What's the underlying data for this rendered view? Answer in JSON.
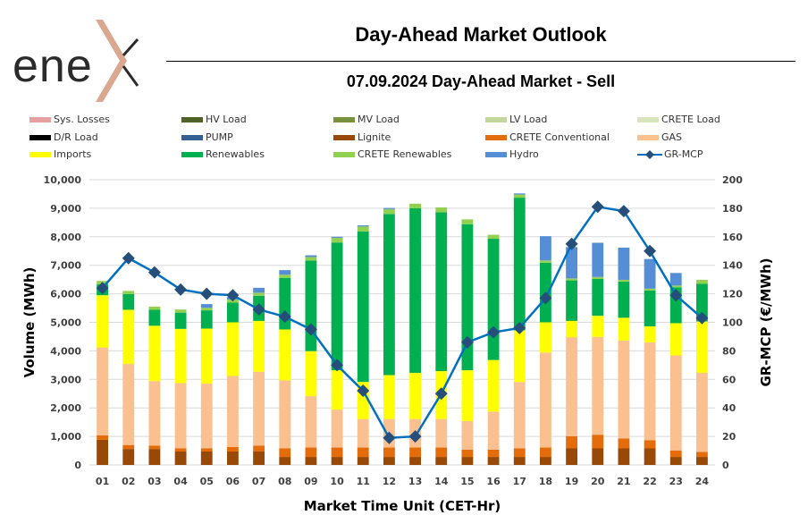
{
  "header": {
    "logo_text": "ene",
    "title": "Day-Ahead Market Outlook",
    "subtitle": "07.09.2024  Day-Ahead Market - Sell"
  },
  "legend": [
    {
      "label": "Sys. Losses",
      "color": "#E6A0A0",
      "kind": "bar"
    },
    {
      "label": "HV Load",
      "color": "#4F6228",
      "kind": "bar"
    },
    {
      "label": "MV Load",
      "color": "#76923C",
      "kind": "bar"
    },
    {
      "label": "LV Load",
      "color": "#C3D69B",
      "kind": "bar"
    },
    {
      "label": "CRETE Load",
      "color": "#D8E4BC",
      "kind": "bar"
    },
    {
      "label": "D/R Load",
      "color": "#000000",
      "kind": "bar"
    },
    {
      "label": "PUMP",
      "color": "#376092",
      "kind": "bar"
    },
    {
      "label": "Lignite",
      "color": "#984807",
      "kind": "bar"
    },
    {
      "label": "CRETE Conventional",
      "color": "#E46C0A",
      "kind": "bar"
    },
    {
      "label": "GAS",
      "color": "#FAC090",
      "kind": "bar"
    },
    {
      "label": "Imports",
      "color": "#FFFF00",
      "kind": "bar"
    },
    {
      "label": "Renewables",
      "color": "#00B050",
      "kind": "bar"
    },
    {
      "label": "CRETE Renewables",
      "color": "#92D050",
      "kind": "bar"
    },
    {
      "label": "Hydro",
      "color": "#558ED5",
      "kind": "bar"
    },
    {
      "label": "GR-MCP",
      "color": "#0070C0",
      "marker": "#254F7A",
      "kind": "line"
    }
  ],
  "chart_data": {
    "type": "bar",
    "title": "Day-Ahead Market Outlook",
    "subtitle": "07.09.2024  Day-Ahead Market - Sell",
    "xlabel": "Market Time Unit (CET-Hr)",
    "ylabel": "Volume (MWh)",
    "y2label": "GR-MCP (€/MWh)",
    "ylim": [
      0,
      10000
    ],
    "y2lim": [
      0,
      200
    ],
    "yticks": [
      "0",
      "1,000",
      "2,000",
      "3,000",
      "4,000",
      "5,000",
      "6,000",
      "7,000",
      "8,000",
      "9,000",
      "10,000"
    ],
    "y2ticks": [
      "0",
      "20",
      "40",
      "60",
      "80",
      "100",
      "120",
      "140",
      "160",
      "180",
      "200"
    ],
    "grid": true,
    "legend_position": "top",
    "categories": [
      "01",
      "02",
      "03",
      "04",
      "05",
      "06",
      "07",
      "08",
      "09",
      "10",
      "11",
      "12",
      "13",
      "14",
      "15",
      "16",
      "17",
      "18",
      "19",
      "20",
      "21",
      "22",
      "23",
      "24"
    ],
    "stacked": true,
    "series": [
      {
        "name": "Lignite",
        "color": "#984807",
        "values": [
          880,
          560,
          560,
          470,
          470,
          470,
          470,
          280,
          280,
          280,
          280,
          280,
          280,
          280,
          280,
          280,
          280,
          280,
          580,
          580,
          580,
          580,
          280,
          280
        ]
      },
      {
        "name": "CRETE Conventional",
        "color": "#E46C0A",
        "values": [
          160,
          140,
          120,
          110,
          110,
          160,
          210,
          300,
          330,
          330,
          330,
          330,
          330,
          330,
          260,
          260,
          300,
          330,
          430,
          480,
          350,
          290,
          230,
          180
        ]
      },
      {
        "name": "GAS",
        "color": "#FAC090",
        "values": [
          3080,
          2840,
          2260,
          2290,
          2270,
          2490,
          2590,
          2390,
          1800,
          1330,
          1000,
          1000,
          1000,
          1000,
          1000,
          1330,
          2330,
          3330,
          3470,
          3430,
          3430,
          3430,
          3330,
          2770
        ]
      },
      {
        "name": "Imports",
        "color": "#FFFF00",
        "values": [
          1830,
          1900,
          1940,
          1900,
          1930,
          1880,
          1780,
          1780,
          1580,
          1380,
          1300,
          1540,
          1620,
          1680,
          1780,
          1810,
          1810,
          1060,
          570,
          740,
          800,
          560,
          1130,
          1800
        ]
      },
      {
        "name": "Renewables",
        "color": "#00B050",
        "values": [
          380,
          550,
          560,
          570,
          640,
          690,
          880,
          1810,
          3180,
          4480,
          5280,
          5650,
          5770,
          5570,
          5120,
          4250,
          4650,
          2090,
          1420,
          1290,
          1270,
          1260,
          1260,
          1320
        ]
      },
      {
        "name": "CRETE Renewables",
        "color": "#92D050",
        "values": [
          120,
          110,
          110,
          110,
          90,
          110,
          110,
          110,
          120,
          160,
          170,
          170,
          160,
          170,
          170,
          140,
          110,
          80,
          70,
          70,
          60,
          60,
          60,
          140
        ]
      },
      {
        "name": "Hydro",
        "color": "#558ED5",
        "values": [
          0,
          0,
          0,
          0,
          130,
          90,
          170,
          160,
          60,
          40,
          40,
          40,
          0,
          0,
          0,
          0,
          40,
          850,
          1100,
          1200,
          1130,
          1040,
          440,
          0
        ]
      }
    ],
    "line_series": {
      "name": "GR-MCP",
      "axis": "right",
      "color": "#0070C0",
      "marker_color": "#254F7A",
      "values": [
        124,
        145,
        135,
        123,
        120,
        119,
        109,
        104,
        95,
        70,
        52,
        19,
        20,
        50,
        86,
        93,
        96,
        117,
        155,
        181,
        178,
        150,
        119,
        103
      ]
    }
  }
}
